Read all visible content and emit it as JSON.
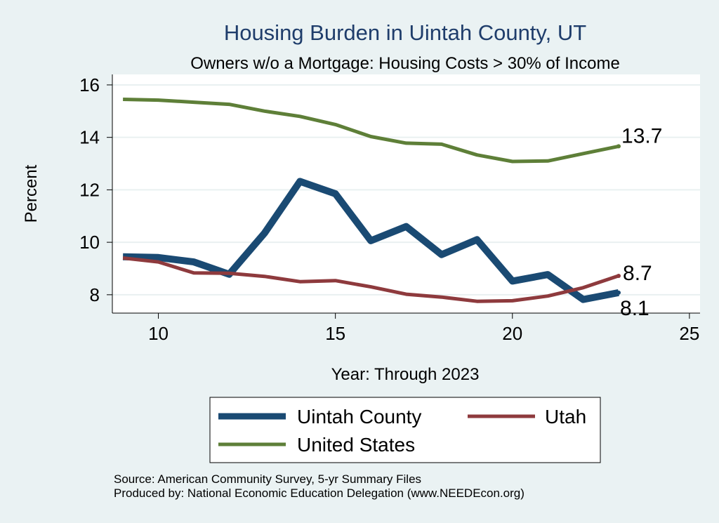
{
  "chart_data": {
    "type": "line",
    "title": "Housing Burden in Uintah County, UT",
    "subtitle": "Owners w/o a Mortgage: Housing Costs > 30% of Income",
    "xlabel": "Year: Through 2023",
    "ylabel": "Percent",
    "xlim": [
      8.7,
      25.3
    ],
    "ylim": [
      7.3,
      16.4
    ],
    "xticks": [
      10,
      15,
      20,
      25
    ],
    "yticks": [
      8,
      10,
      12,
      14,
      16
    ],
    "x": [
      9,
      10,
      11,
      12,
      13,
      14,
      15,
      16,
      17,
      18,
      19,
      20,
      21,
      22,
      23
    ],
    "series": [
      {
        "name": "Uintah County",
        "color": "#1a4a73",
        "values": [
          9.45,
          9.42,
          9.25,
          8.78,
          10.35,
          12.32,
          11.85,
          10.06,
          10.6,
          9.53,
          10.1,
          8.52,
          8.77,
          7.82,
          8.08
        ],
        "end_label": "8.1"
      },
      {
        "name": "Utah",
        "color": "#8e3a3d",
        "values": [
          9.4,
          9.25,
          8.83,
          8.82,
          8.7,
          8.5,
          8.54,
          8.3,
          8.02,
          7.91,
          7.75,
          7.77,
          7.95,
          8.27,
          8.72
        ],
        "end_label": "8.7"
      },
      {
        "name": "United States",
        "color": "#5e7f38",
        "values": [
          15.45,
          15.42,
          15.34,
          15.26,
          15.0,
          14.8,
          14.49,
          14.03,
          13.78,
          13.74,
          13.33,
          13.08,
          13.1,
          13.38,
          13.66
        ],
        "end_label": "13.7"
      }
    ],
    "legend": {
      "placement": "bottom",
      "entries": [
        "Uintah County",
        "Utah",
        "United States"
      ]
    },
    "grid": true
  },
  "source": {
    "line1": "Source: American Community Survey, 5-yr Summary Files",
    "line2": "Produced by: National Economic Education Delegation (www.NEEDEcon.org)"
  }
}
